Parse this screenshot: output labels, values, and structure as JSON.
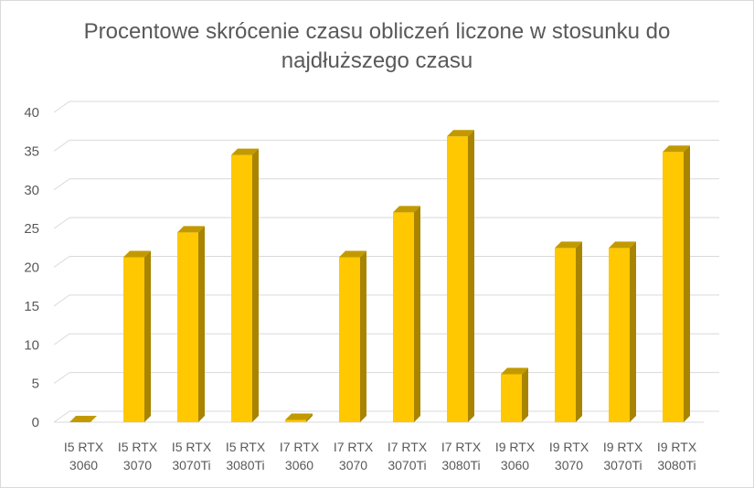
{
  "chart_data": {
    "type": "bar",
    "title_lines": [
      "Procentowe skrócenie czasu obliczeń liczone w stosunku do",
      "najdłuższego czasu"
    ],
    "categories": [
      [
        "I5 RTX",
        "3060"
      ],
      [
        "I5 RTX",
        "3070"
      ],
      [
        "I5 RTX",
        "3070Ti"
      ],
      [
        "I5 RTX",
        "3080Ti"
      ],
      [
        "I7 RTX",
        "3060"
      ],
      [
        "I7 RTX",
        "3070"
      ],
      [
        "I7 RTX",
        "3070Ti"
      ],
      [
        "I7 RTX",
        "3080Ti"
      ],
      [
        "I9 RTX",
        "3060"
      ],
      [
        "I9 RTX",
        "3070"
      ],
      [
        "I9 RTX",
        "3070Ti"
      ],
      [
        "I9 RTX",
        "3080Ti"
      ]
    ],
    "values": [
      0,
      21.3,
      24.5,
      34.5,
      0.3,
      21.3,
      27.1,
      36.9,
      6.2,
      22.5,
      22.5,
      34.9
    ],
    "ylim": [
      0,
      40
    ],
    "yticks": [
      0,
      5,
      10,
      15,
      20,
      25,
      30,
      35,
      40
    ],
    "grid": true,
    "legend": "none",
    "colors": {
      "bar_front": "#ffc800",
      "bar_side": "#a88400",
      "bar_top": "#c29a00",
      "grid": "#d9d9d9",
      "text": "#595959"
    }
  }
}
